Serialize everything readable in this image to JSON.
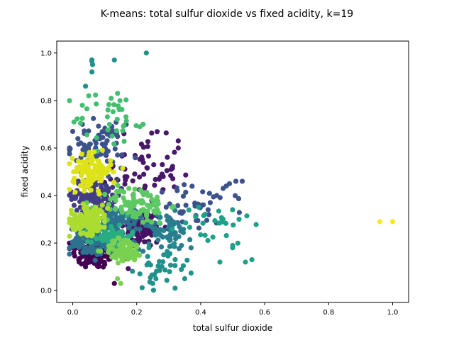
{
  "chart_data": {
    "type": "scatter",
    "title": "K-means: total sulfur dioxide vs fixed acidity, k=19",
    "xlabel": "total sulfur dioxide",
    "ylabel": "fixed acidity",
    "xlim": [
      -0.05,
      1.05
    ],
    "ylim": [
      -0.05,
      1.05
    ],
    "xticks": [
      "0.0",
      "0.2",
      "0.4",
      "0.6",
      "0.8",
      "1.0"
    ],
    "yticks": [
      "0.0",
      "0.2",
      "0.4",
      "0.6",
      "0.8",
      "1.0"
    ],
    "grid": false,
    "legend": "none",
    "clusters": [
      {
        "color": "#440154",
        "center": [
          0.07,
          0.16
        ],
        "spread": [
          0.035,
          0.035
        ],
        "n": 110,
        "extra": [
          [
            0.04,
            0.1
          ],
          [
            0.02,
            0.12
          ],
          [
            0.13,
            0.03
          ],
          [
            0.1,
            0.11
          ]
        ]
      },
      {
        "color": "#471365",
        "center": [
          0.22,
          0.26
        ],
        "spread": [
          0.03,
          0.04
        ],
        "n": 90,
        "extra": [
          [
            0.26,
            0.24
          ],
          [
            0.24,
            0.3
          ]
        ]
      },
      {
        "color": "#48186a",
        "center": [
          0.21,
          0.5
        ],
        "spread": [
          0.06,
          0.07
        ],
        "n": 60,
        "extra": [
          [
            0.33,
            0.63
          ],
          [
            0.33,
            0.6
          ],
          [
            0.28,
            0.53
          ],
          [
            0.16,
            0.66
          ]
        ]
      },
      {
        "color": "#433d84",
        "center": [
          0.07,
          0.4
        ],
        "spread": [
          0.035,
          0.035
        ],
        "n": 110,
        "extra": []
      },
      {
        "color": "#3b528b",
        "center": [
          0.07,
          0.61
        ],
        "spread": [
          0.045,
          0.045
        ],
        "n": 75,
        "extra": [
          [
            0.0,
            0.67
          ],
          [
            0.03,
            0.7
          ],
          [
            0.14,
            0.57
          ]
        ]
      },
      {
        "color": "#3b528b",
        "center": [
          0.38,
          0.34
        ],
        "spread": [
          0.08,
          0.05
        ],
        "n": 45,
        "extra": [
          [
            0.47,
            0.43
          ],
          [
            0.49,
            0.45
          ],
          [
            0.51,
            0.46
          ],
          [
            0.53,
            0.46
          ],
          [
            0.45,
            0.4
          ],
          [
            0.43,
            0.37
          ],
          [
            0.48,
            0.44
          ]
        ]
      },
      {
        "color": "#2c728e",
        "center": [
          0.07,
          0.21
        ],
        "spread": [
          0.04,
          0.03
        ],
        "n": 120,
        "extra": []
      },
      {
        "color": "#2c728e",
        "center": [
          0.14,
          0.29
        ],
        "spread": [
          0.04,
          0.03
        ],
        "n": 90,
        "extra": []
      },
      {
        "color": "#287d8e",
        "center": [
          0.29,
          0.25
        ],
        "spread": [
          0.04,
          0.04
        ],
        "n": 60,
        "extra": [
          [
            0.34,
            0.19
          ],
          [
            0.37,
            0.18
          ]
        ]
      },
      {
        "color": "#21918c",
        "center": [
          0.28,
          0.1
        ],
        "spread": [
          0.04,
          0.04
        ],
        "n": 35,
        "extra": [
          [
            0.21,
            0.07
          ],
          [
            0.26,
            0.05
          ],
          [
            0.32,
            0.01
          ],
          [
            0.35,
            0.05
          ],
          [
            0.25,
            0.03
          ]
        ]
      },
      {
        "color": "#21918c",
        "center": [
          0.06,
          0.95
        ],
        "spread": [
          0.005,
          0.015
        ],
        "n": 3,
        "extra": [
          [
            0.06,
            0.97
          ],
          [
            0.06,
            0.92
          ],
          [
            0.13,
            0.97
          ],
          [
            0.23,
            1.0
          ],
          [
            0.04,
            0.86
          ]
        ]
      },
      {
        "color": "#1fa088",
        "center": [
          0.44,
          0.28
        ],
        "spread": [
          0.06,
          0.05
        ],
        "n": 25,
        "extra": [
          [
            0.47,
            0.3
          ],
          [
            0.5,
            0.19
          ],
          [
            0.5,
            0.18
          ],
          [
            0.54,
            0.12
          ],
          [
            0.56,
            0.13
          ],
          [
            0.46,
            0.12
          ],
          [
            0.52,
            0.3
          ]
        ]
      },
      {
        "color": "#27ad81",
        "center": [
          0.12,
          0.23
        ],
        "spread": [
          0.03,
          0.025
        ],
        "n": 80,
        "extra": []
      },
      {
        "color": "#44bf70",
        "center": [
          0.12,
          0.72
        ],
        "spread": [
          0.06,
          0.06
        ],
        "n": 35,
        "extra": [
          [
            0.05,
            0.82
          ],
          [
            0.03,
            0.78
          ],
          [
            0.14,
            0.83
          ],
          [
            0.21,
            0.69
          ],
          [
            0.22,
            0.7
          ]
        ]
      },
      {
        "color": "#5ec962",
        "center": [
          0.2,
          0.36
        ],
        "spread": [
          0.05,
          0.04
        ],
        "n": 95,
        "extra": [
          [
            0.15,
            0.42
          ]
        ]
      },
      {
        "color": "#7ad151",
        "center": [
          0.16,
          0.17
        ],
        "spread": [
          0.03,
          0.025
        ],
        "n": 75,
        "extra": [
          [
            0.14,
            0.05
          ],
          [
            0.15,
            0.03
          ],
          [
            0.2,
            0.19
          ]
        ]
      },
      {
        "color": "#addc30",
        "center": [
          0.05,
          0.3
        ],
        "spread": [
          0.03,
          0.03
        ],
        "n": 130,
        "extra": []
      },
      {
        "color": "#dde318",
        "center": [
          0.06,
          0.5
        ],
        "spread": [
          0.03,
          0.035
        ],
        "n": 120,
        "extra": []
      },
      {
        "color": "#fde725",
        "center": [
          0.98,
          0.29
        ],
        "spread": [
          0.0,
          0.0
        ],
        "n": 0,
        "extra": [
          [
            0.96,
            0.29
          ],
          [
            1.0,
            0.29
          ]
        ]
      }
    ]
  }
}
